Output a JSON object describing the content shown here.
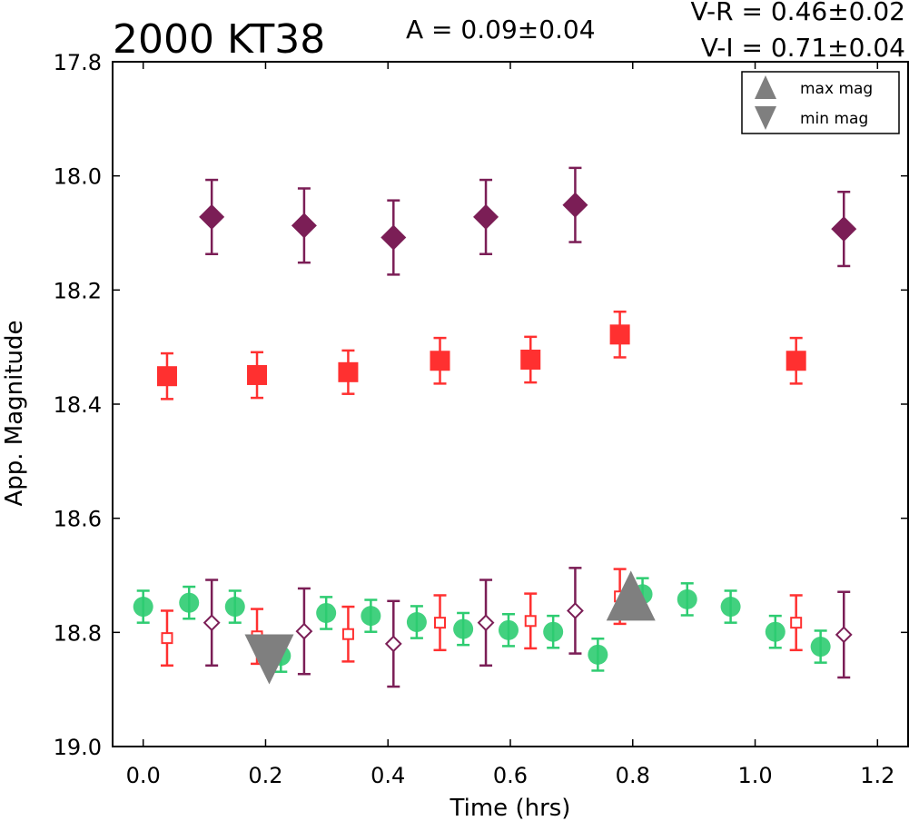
{
  "chart_data": {
    "type": "scatter",
    "title": "2000 KT38",
    "annotations": {
      "amplitude": "A  = 0.09±0.04",
      "v_r": "V-R = 0.46±0.02",
      "v_i": "V-I  = 0.71±0.04"
    },
    "xlabel": "Time (hrs)",
    "ylabel": "App. Magnitude",
    "xlim": [
      -0.05,
      1.25
    ],
    "ylim": [
      19.0,
      17.8
    ],
    "y_inverted": true,
    "grid": false,
    "xticks": [
      "0.0",
      "0.2",
      "0.4",
      "0.6",
      "0.8",
      "1.0",
      "1.2"
    ],
    "yticks": [
      "17.8",
      "18.0",
      "18.2",
      "18.4",
      "18.6",
      "18.8",
      "19.0"
    ],
    "legend": {
      "placement": "top-right",
      "entries": [
        {
          "label": "max mag",
          "marker": "triangle-up"
        },
        {
          "label": "min mag",
          "marker": "triangle-down"
        }
      ]
    },
    "colors": {
      "green": "#2ecc71",
      "red": "#ff3030",
      "purple": "#7b1e56",
      "gray": "#7f7f7f"
    },
    "series": [
      {
        "marker": "diamond-filled",
        "color": "#7b1e56",
        "points": [
          {
            "x": 0.112,
            "y": 18.072,
            "err": 0.065
          },
          {
            "x": 0.263,
            "y": 18.087,
            "err": 0.065
          },
          {
            "x": 0.409,
            "y": 18.108,
            "err": 0.065
          },
          {
            "x": 0.56,
            "y": 18.072,
            "err": 0.065
          },
          {
            "x": 0.706,
            "y": 18.051,
            "err": 0.065
          },
          {
            "x": 1.145,
            "y": 18.093,
            "err": 0.065
          }
        ]
      },
      {
        "marker": "square-filled",
        "color": "#ff3030",
        "points": [
          {
            "x": 0.039,
            "y": 18.351,
            "err": 0.04
          },
          {
            "x": 0.186,
            "y": 18.349,
            "err": 0.04
          },
          {
            "x": 0.335,
            "y": 18.344,
            "err": 0.038
          },
          {
            "x": 0.485,
            "y": 18.324,
            "err": 0.04
          },
          {
            "x": 0.633,
            "y": 18.322,
            "err": 0.04
          },
          {
            "x": 0.779,
            "y": 18.278,
            "err": 0.04
          },
          {
            "x": 1.067,
            "y": 18.324,
            "err": 0.04
          }
        ]
      },
      {
        "marker": "circle-filled",
        "color": "#2ecc71",
        "points": [
          {
            "x": 0.0,
            "y": 18.755,
            "err": 0.028
          },
          {
            "x": 0.075,
            "y": 18.748,
            "err": 0.028
          },
          {
            "x": 0.15,
            "y": 18.755,
            "err": 0.028
          },
          {
            "x": 0.225,
            "y": 18.841,
            "err": 0.028
          },
          {
            "x": 0.299,
            "y": 18.766,
            "err": 0.028
          },
          {
            "x": 0.372,
            "y": 18.771,
            "err": 0.028
          },
          {
            "x": 0.447,
            "y": 18.782,
            "err": 0.028
          },
          {
            "x": 0.523,
            "y": 18.794,
            "err": 0.028
          },
          {
            "x": 0.597,
            "y": 18.796,
            "err": 0.028
          },
          {
            "x": 0.67,
            "y": 18.799,
            "err": 0.028
          },
          {
            "x": 0.743,
            "y": 18.839,
            "err": 0.028
          },
          {
            "x": 0.816,
            "y": 18.733,
            "err": 0.028
          },
          {
            "x": 0.889,
            "y": 18.742,
            "err": 0.028
          },
          {
            "x": 0.96,
            "y": 18.755,
            "err": 0.028
          },
          {
            "x": 1.033,
            "y": 18.799,
            "err": 0.028
          },
          {
            "x": 1.107,
            "y": 18.825,
            "err": 0.028
          }
        ]
      },
      {
        "marker": "square-open",
        "color": "#ff3030",
        "points": [
          {
            "x": 0.039,
            "y": 18.81,
            "err": 0.048
          },
          {
            "x": 0.186,
            "y": 18.807,
            "err": 0.048
          },
          {
            "x": 0.335,
            "y": 18.803,
            "err": 0.048
          },
          {
            "x": 0.485,
            "y": 18.783,
            "err": 0.048
          },
          {
            "x": 0.633,
            "y": 18.78,
            "err": 0.048
          },
          {
            "x": 0.779,
            "y": 18.737,
            "err": 0.048
          },
          {
            "x": 1.067,
            "y": 18.783,
            "err": 0.048
          }
        ]
      },
      {
        "marker": "diamond-open",
        "color": "#7b1e56",
        "points": [
          {
            "x": 0.112,
            "y": 18.783,
            "err": 0.075
          },
          {
            "x": 0.263,
            "y": 18.798,
            "err": 0.075
          },
          {
            "x": 0.409,
            "y": 18.82,
            "err": 0.075
          },
          {
            "x": 0.56,
            "y": 18.783,
            "err": 0.075
          },
          {
            "x": 0.706,
            "y": 18.762,
            "err": 0.075
          },
          {
            "x": 1.145,
            "y": 18.804,
            "err": 0.075
          }
        ]
      },
      {
        "name": "max mag",
        "marker": "triangle-up",
        "color": "#7f7f7f",
        "points": [
          {
            "x": 0.797,
            "y": 18.754
          }
        ]
      },
      {
        "name": "min mag",
        "marker": "triangle-down",
        "color": "#7f7f7f",
        "points": [
          {
            "x": 0.206,
            "y": 18.829
          }
        ]
      }
    ]
  }
}
